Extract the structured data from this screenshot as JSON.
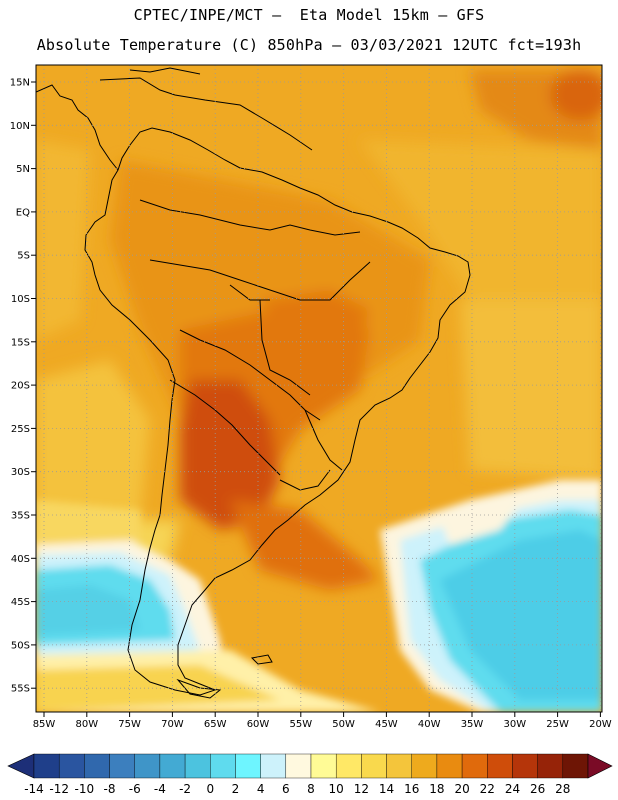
{
  "header": {
    "line1": "CPTEC/INPE/MCT –  Eta Model 15km – GFS",
    "line2": "Absolute Temperature (C) 850hPa – 03/03/2021 12UTC fct=193h"
  },
  "map": {
    "lat_labels": [
      "15N",
      "10N",
      "5N",
      "EQ",
      "5S",
      "10S",
      "15S",
      "20S",
      "25S",
      "30S",
      "35S",
      "40S",
      "45S",
      "50S",
      "55S"
    ],
    "lon_labels": [
      "85W",
      "80W",
      "75W",
      "70W",
      "65W",
      "60W",
      "55W",
      "50W",
      "45W",
      "40W",
      "35W",
      "30W",
      "25W",
      "20W"
    ],
    "grid": "dotted"
  },
  "colorbar": {
    "labels": [
      "-14",
      "-12",
      "-10",
      "-8",
      "-6",
      "-4",
      "-2",
      "0",
      "2",
      "4",
      "6",
      "8",
      "10",
      "12",
      "14",
      "16",
      "18",
      "20",
      "22",
      "24",
      "26",
      "28"
    ],
    "colors": [
      "#1f3f8a",
      "#2a55a0",
      "#3068ad",
      "#3c7fbe",
      "#3f95c8",
      "#43aad3",
      "#4cc3df",
      "#5fdbee",
      "#6ef5ff",
      "#cdf2fb",
      "#fff9df",
      "#fffb96",
      "#ffe866",
      "#f9d94d",
      "#f4c53b",
      "#eeaa1d",
      "#e98b10",
      "#e06a0c",
      "#cf4d0a",
      "#b5350a",
      "#962308",
      "#6e1505"
    ],
    "under_color": "#1d2f78",
    "over_color": "#7a0b26"
  }
}
